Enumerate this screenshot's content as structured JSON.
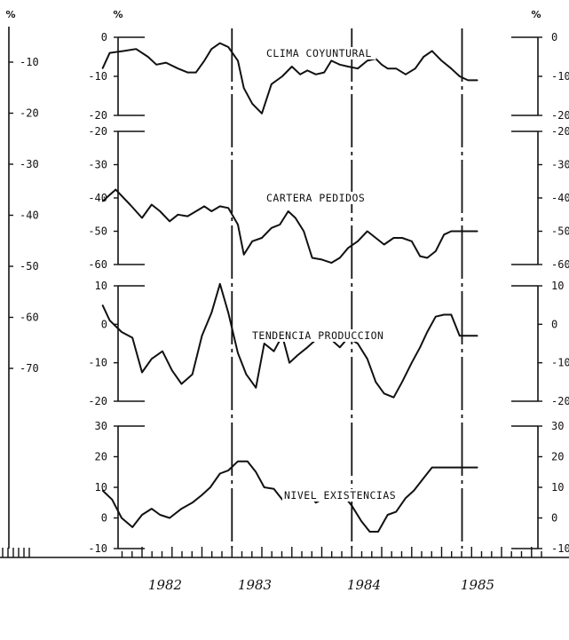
{
  "chart_data": {
    "type": "line",
    "x_unit": "year",
    "year_ticks": [
      "1982",
      "1983",
      "1984",
      "1985"
    ],
    "unit_label": "%",
    "panels": [
      {
        "title": "CLIMA COYUNTURAL",
        "ylim": [
          -20,
          0
        ],
        "ticks": [
          0,
          -10,
          -20
        ],
        "x": [
          1981.67,
          1981.73,
          1981.85,
          1981.95,
          1982.05,
          1982.12,
          1982.2,
          1982.3,
          1982.38,
          1982.45,
          1982.52,
          1982.58,
          1982.65,
          1982.72,
          1982.8,
          1982.85,
          1982.92,
          1983.0,
          1983.08,
          1983.17,
          1983.25,
          1983.32,
          1983.38,
          1983.45,
          1983.52,
          1983.58,
          1983.65,
          1983.72,
          1983.8,
          1983.88,
          1983.95,
          1984.0,
          1984.05,
          1984.12,
          1984.2,
          1984.28,
          1984.35,
          1984.42,
          1984.5,
          1984.58,
          1984.65,
          1984.72,
          1984.8
        ],
        "y": [
          -8,
          -4,
          -3.5,
          -3,
          -5,
          -7,
          -6.5,
          -8,
          -9,
          -9,
          -6,
          -3,
          -1.5,
          -2.5,
          -6,
          -13,
          -17,
          -19.5,
          -12,
          -10,
          -7.5,
          -9.5,
          -8.5,
          -9.5,
          -9,
          -6,
          -7,
          -7.5,
          -8,
          -6,
          -5.5,
          -7,
          -8,
          -8,
          -9.5,
          -8,
          -5,
          -3.5,
          -6,
          -8,
          -10,
          -11,
          -11
        ]
      },
      {
        "title": "CARTERA PEDIDOS",
        "ylim": [
          -60,
          -20
        ],
        "ticks": [
          -20,
          -30,
          -40,
          -50,
          -60
        ],
        "x": [
          1981.67,
          1981.78,
          1981.9,
          1982.0,
          1982.08,
          1982.15,
          1982.23,
          1982.3,
          1982.38,
          1982.45,
          1982.52,
          1982.58,
          1982.65,
          1982.72,
          1982.8,
          1982.85,
          1982.92,
          1983.0,
          1983.08,
          1983.15,
          1983.22,
          1983.28,
          1983.35,
          1983.42,
          1983.5,
          1983.58,
          1983.65,
          1983.72,
          1983.8,
          1983.88,
          1983.95,
          1984.02,
          1984.1,
          1984.17,
          1984.25,
          1984.32,
          1984.38,
          1984.45,
          1984.52,
          1984.58,
          1984.65,
          1984.72,
          1984.8
        ],
        "y": [
          -41,
          -37.5,
          -42,
          -46,
          -42,
          -44,
          -47,
          -45,
          -45.5,
          -44,
          -42.5,
          -44,
          -42.5,
          -43,
          -48,
          -57,
          -53,
          -52,
          -49,
          -48,
          -44,
          -46,
          -50,
          -58,
          -58.5,
          -59.5,
          -58,
          -55,
          -53,
          -50,
          -52,
          -54,
          -52,
          -52,
          -53,
          -57.5,
          -58,
          -56,
          -51,
          -50,
          -50,
          -50,
          -50
        ]
      },
      {
        "title": "TENDENCIA PRODUCCION",
        "ylim": [
          -20,
          10
        ],
        "ticks": [
          10,
          0,
          -10,
          -20
        ],
        "x": [
          1981.67,
          1981.73,
          1981.83,
          1981.92,
          1982.0,
          1982.08,
          1982.17,
          1982.25,
          1982.33,
          1982.42,
          1982.5,
          1982.58,
          1982.65,
          1982.72,
          1982.8,
          1982.87,
          1982.95,
          1983.02,
          1983.1,
          1983.17,
          1983.23,
          1983.3,
          1983.38,
          1983.45,
          1983.52,
          1983.58,
          1983.65,
          1983.72,
          1983.8,
          1983.88,
          1983.95,
          1984.02,
          1984.1,
          1984.17,
          1984.25,
          1984.32,
          1984.38,
          1984.45,
          1984.52,
          1984.58,
          1984.65,
          1984.72,
          1984.8
        ],
        "y": [
          5,
          1,
          -2,
          -3.5,
          -12.5,
          -9,
          -7,
          -12,
          -15.5,
          -13,
          -3,
          3,
          10.5,
          3,
          -7.5,
          -13,
          -16.5,
          -5,
          -7,
          -3,
          -10,
          -8,
          -6,
          -4,
          -3,
          -4,
          -6,
          -3.5,
          -5,
          -9,
          -15,
          -18,
          -19,
          -15,
          -10,
          -6,
          -2,
          2,
          2.5,
          2.5,
          -3,
          -3,
          -3
        ]
      },
      {
        "title": "NIVEL EXISTENCIAS",
        "ylim": [
          -10,
          30
        ],
        "ticks": [
          30,
          20,
          10,
          0,
          -10
        ],
        "x": [
          1981.67,
          1981.75,
          1981.83,
          1981.92,
          1982.0,
          1982.08,
          1982.15,
          1982.23,
          1982.33,
          1982.42,
          1982.5,
          1982.57,
          1982.65,
          1982.72,
          1982.8,
          1982.88,
          1982.95,
          1983.02,
          1983.1,
          1983.17,
          1983.25,
          1983.32,
          1983.38,
          1983.45,
          1983.52,
          1983.6,
          1983.67,
          1983.75,
          1983.83,
          1983.9,
          1983.97,
          1984.05,
          1984.12,
          1984.2,
          1984.27,
          1984.35,
          1984.42,
          1984.48,
          1984.55,
          1984.63,
          1984.7,
          1984.75,
          1984.8
        ],
        "y": [
          9,
          6,
          0,
          -3,
          1,
          3,
          1,
          0,
          3,
          5,
          7.5,
          10,
          14.5,
          15.5,
          18.5,
          18.5,
          15,
          10,
          9.5,
          6,
          6.5,
          9,
          8.5,
          5,
          6.5,
          6.5,
          8,
          4,
          -1,
          -4.5,
          -4.5,
          1,
          2,
          6.5,
          9,
          13,
          16.5,
          16.5,
          16.5,
          16.5,
          16.5,
          16.5,
          16.5
        ]
      }
    ],
    "left_axis": {
      "ticks": [
        "-10",
        "-20",
        "-30",
        "-40",
        "-50",
        "-60",
        "-70"
      ]
    },
    "right_axis": {
      "panels": [
        [
          "0",
          "-10",
          "-20"
        ],
        [
          "-20",
          "-30",
          "-40",
          "-50",
          "-60"
        ],
        [
          "10",
          "0",
          "-10",
          "-20"
        ],
        [
          "30",
          "20",
          "10",
          "0",
          "-10"
        ]
      ]
    },
    "vertical_markers": [
      1982.75,
      1983.75,
      1984.67
    ],
    "grid": false
  }
}
